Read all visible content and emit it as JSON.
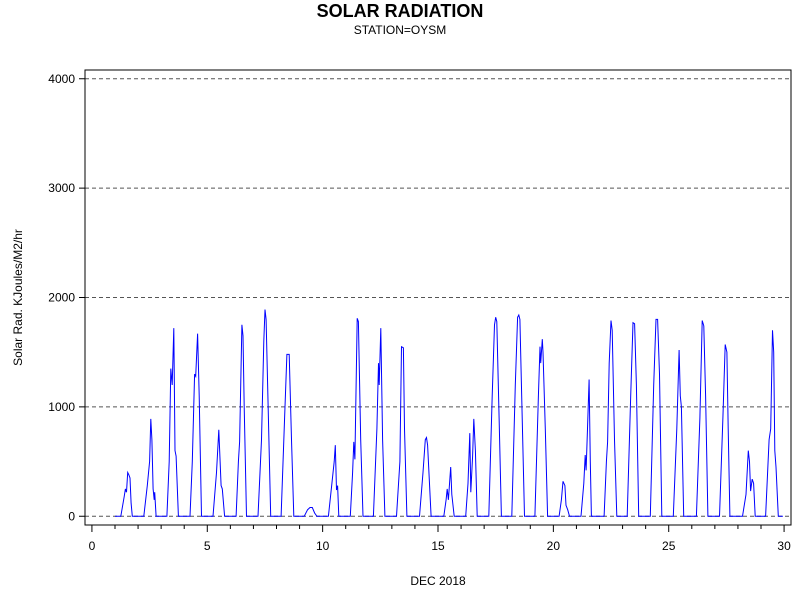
{
  "chart_data": {
    "type": "line",
    "title": "SOLAR RADIATION",
    "subtitle": "STATION=OYSM",
    "xlabel": "DEC 2018",
    "ylabel": "Solar Rad. KJoules/M2/hr",
    "xlim": [
      -0.3,
      30.3
    ],
    "ylim": [
      -80,
      4080
    ],
    "x_ticks": [
      0,
      5,
      10,
      15,
      20,
      25,
      30
    ],
    "x_tick_labels": [
      "0",
      "5",
      "10",
      "15",
      "20",
      "25",
      "30"
    ],
    "y_ticks": [
      0,
      1000,
      2000,
      3000,
      4000
    ],
    "y_tick_labels": [
      "0",
      "1000",
      "2000",
      "3000",
      "4000"
    ],
    "grid": "horizontal dashed at y ticks",
    "line_color": "#0000ff",
    "series": [
      {
        "values": [
          [
            1.0,
            0
          ],
          [
            1.05,
            0
          ],
          [
            1.95,
            0
          ],
          [
            1.25,
            0
          ],
          [
            1.4,
            180
          ],
          [
            1.45,
            250
          ],
          [
            1.5,
            220
          ],
          [
            1.55,
            400
          ],
          [
            1.6,
            380
          ],
          [
            1.65,
            350
          ],
          [
            1.7,
            120
          ],
          [
            1.75,
            0
          ],
          [
            2.25,
            0
          ],
          [
            2.4,
            280
          ],
          [
            2.5,
            500
          ],
          [
            2.55,
            890
          ],
          [
            2.6,
            700
          ],
          [
            2.65,
            250
          ],
          [
            2.7,
            150
          ],
          [
            2.72,
            220
          ],
          [
            2.78,
            0
          ],
          [
            3.25,
            0
          ],
          [
            3.35,
            500
          ],
          [
            3.42,
            1350
          ],
          [
            3.48,
            1200
          ],
          [
            3.55,
            1720
          ],
          [
            3.6,
            600
          ],
          [
            3.65,
            550
          ],
          [
            3.75,
            0
          ],
          [
            4.25,
            0
          ],
          [
            4.35,
            500
          ],
          [
            4.45,
            1300
          ],
          [
            4.5,
            1280
          ],
          [
            4.58,
            1670
          ],
          [
            4.65,
            1100
          ],
          [
            4.75,
            0
          ],
          [
            5.25,
            0
          ],
          [
            5.4,
            400
          ],
          [
            5.5,
            790
          ],
          [
            5.6,
            280
          ],
          [
            5.65,
            250
          ],
          [
            5.75,
            0
          ],
          [
            6.25,
            0
          ],
          [
            6.35,
            500
          ],
          [
            6.4,
            680
          ],
          [
            6.5,
            1750
          ],
          [
            6.55,
            1650
          ],
          [
            6.6,
            1000
          ],
          [
            6.7,
            0
          ],
          [
            7.2,
            0
          ],
          [
            7.35,
            700
          ],
          [
            7.45,
            1600
          ],
          [
            7.5,
            1890
          ],
          [
            7.55,
            1800
          ],
          [
            7.65,
            900
          ],
          [
            7.75,
            0
          ],
          [
            8.2,
            0
          ],
          [
            8.35,
            900
          ],
          [
            8.45,
            1480
          ],
          [
            8.55,
            1480
          ],
          [
            8.65,
            700
          ],
          [
            8.75,
            0
          ],
          [
            9.2,
            0
          ],
          [
            9.35,
            60
          ],
          [
            9.45,
            80
          ],
          [
            9.55,
            80
          ],
          [
            9.65,
            30
          ],
          [
            9.75,
            0
          ],
          [
            10.25,
            0
          ],
          [
            10.4,
            300
          ],
          [
            10.5,
            500
          ],
          [
            10.55,
            650
          ],
          [
            10.6,
            240
          ],
          [
            10.65,
            280
          ],
          [
            10.7,
            0
          ],
          [
            11.2,
            0
          ],
          [
            11.3,
            400
          ],
          [
            11.35,
            680
          ],
          [
            11.4,
            520
          ],
          [
            11.5,
            1810
          ],
          [
            11.55,
            1780
          ],
          [
            11.65,
            700
          ],
          [
            11.75,
            0
          ],
          [
            12.2,
            0
          ],
          [
            12.35,
            800
          ],
          [
            12.42,
            1400
          ],
          [
            12.45,
            1200
          ],
          [
            12.52,
            1720
          ],
          [
            12.6,
            700
          ],
          [
            12.7,
            0
          ],
          [
            13.2,
            0
          ],
          [
            13.35,
            500
          ],
          [
            13.42,
            1550
          ],
          [
            13.5,
            1540
          ],
          [
            13.55,
            800
          ],
          [
            13.65,
            0
          ],
          [
            14.2,
            0
          ],
          [
            14.35,
            400
          ],
          [
            14.45,
            700
          ],
          [
            14.5,
            720
          ],
          [
            14.55,
            650
          ],
          [
            14.7,
            0
          ],
          [
            15.25,
            0
          ],
          [
            15.35,
            150
          ],
          [
            15.4,
            250
          ],
          [
            15.45,
            150
          ],
          [
            15.55,
            450
          ],
          [
            15.6,
            200
          ],
          [
            15.7,
            0
          ],
          [
            16.2,
            0
          ],
          [
            16.3,
            300
          ],
          [
            16.38,
            760
          ],
          [
            16.42,
            220
          ],
          [
            16.5,
            550
          ],
          [
            16.55,
            890
          ],
          [
            16.62,
            600
          ],
          [
            16.7,
            0
          ],
          [
            17.2,
            0
          ],
          [
            17.35,
            1100
          ],
          [
            17.45,
            1750
          ],
          [
            17.5,
            1820
          ],
          [
            17.55,
            1780
          ],
          [
            17.65,
            900
          ],
          [
            17.75,
            0
          ],
          [
            18.2,
            0
          ],
          [
            18.35,
            1200
          ],
          [
            18.45,
            1820
          ],
          [
            18.5,
            1840
          ],
          [
            18.55,
            1800
          ],
          [
            18.65,
            900
          ],
          [
            18.75,
            0
          ],
          [
            19.2,
            0
          ],
          [
            19.35,
            1100
          ],
          [
            19.42,
            1550
          ],
          [
            19.45,
            1400
          ],
          [
            19.52,
            1620
          ],
          [
            19.55,
            1500
          ],
          [
            19.65,
            800
          ],
          [
            19.75,
            0
          ],
          [
            20.25,
            0
          ],
          [
            20.35,
            150
          ],
          [
            20.42,
            320
          ],
          [
            20.5,
            280
          ],
          [
            20.55,
            100
          ],
          [
            20.62,
            60
          ],
          [
            20.7,
            0
          ],
          [
            21.2,
            0
          ],
          [
            21.32,
            300
          ],
          [
            21.38,
            560
          ],
          [
            21.42,
            420
          ],
          [
            21.48,
            800
          ],
          [
            21.55,
            1250
          ],
          [
            21.6,
            500
          ],
          [
            21.65,
            0
          ],
          [
            22.2,
            0
          ],
          [
            22.3,
            500
          ],
          [
            22.35,
            680
          ],
          [
            22.42,
            1400
          ],
          [
            22.5,
            1790
          ],
          [
            22.55,
            1700
          ],
          [
            22.65,
            700
          ],
          [
            22.75,
            0
          ],
          [
            23.2,
            0
          ],
          [
            23.35,
            1100
          ],
          [
            23.45,
            1770
          ],
          [
            23.52,
            1760
          ],
          [
            23.6,
            1200
          ],
          [
            23.7,
            0
          ],
          [
            24.2,
            0
          ],
          [
            24.35,
            1200
          ],
          [
            24.45,
            1800
          ],
          [
            24.52,
            1800
          ],
          [
            24.6,
            1300
          ],
          [
            24.7,
            0
          ],
          [
            25.2,
            0
          ],
          [
            25.35,
            800
          ],
          [
            25.45,
            1520
          ],
          [
            25.5,
            1100
          ],
          [
            25.55,
            1000
          ],
          [
            25.65,
            0
          ],
          [
            26.2,
            0
          ],
          [
            26.35,
            900
          ],
          [
            26.45,
            1790
          ],
          [
            26.52,
            1740
          ],
          [
            26.6,
            1100
          ],
          [
            26.7,
            0
          ],
          [
            27.2,
            0
          ],
          [
            27.35,
            900
          ],
          [
            27.45,
            1570
          ],
          [
            27.52,
            1500
          ],
          [
            27.58,
            800
          ],
          [
            27.65,
            0
          ],
          [
            28.2,
            0
          ],
          [
            28.35,
            200
          ],
          [
            28.45,
            600
          ],
          [
            28.5,
            500
          ],
          [
            28.55,
            230
          ],
          [
            28.62,
            340
          ],
          [
            28.68,
            300
          ],
          [
            28.75,
            0
          ],
          [
            29.2,
            0
          ],
          [
            29.35,
            700
          ],
          [
            29.42,
            800
          ],
          [
            29.5,
            1700
          ],
          [
            29.55,
            1500
          ],
          [
            29.6,
            600
          ],
          [
            29.65,
            450
          ],
          [
            29.75,
            0
          ],
          [
            29.95,
            0
          ]
        ]
      }
    ]
  }
}
